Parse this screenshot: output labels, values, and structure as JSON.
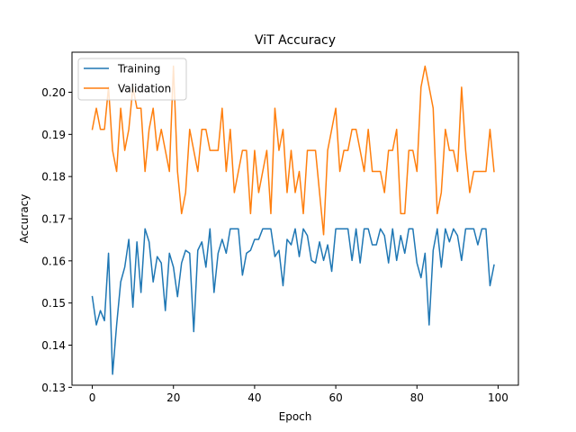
{
  "chart_data": {
    "type": "line",
    "title": "ViT Accuracy",
    "xlabel": "Epoch",
    "ylabel": "Accuracy",
    "xlim": [
      -5,
      105
    ],
    "ylim": [
      0.1305,
      0.2095
    ],
    "xticks": [
      0,
      20,
      40,
      60,
      80,
      100
    ],
    "yticks": [
      0.13,
      0.14,
      0.15,
      0.16,
      0.17,
      0.18,
      0.19,
      0.2
    ],
    "ytick_labels": [
      "0.13",
      "0.14",
      "0.15",
      "0.16",
      "0.17",
      "0.18",
      "0.19",
      "0.20"
    ],
    "grid": false,
    "legend_position": "top-left",
    "x": [
      0,
      1,
      2,
      3,
      4,
      5,
      6,
      7,
      8,
      9,
      10,
      11,
      12,
      13,
      14,
      15,
      16,
      17,
      18,
      19,
      20,
      21,
      22,
      23,
      24,
      25,
      26,
      27,
      28,
      29,
      30,
      31,
      32,
      33,
      34,
      35,
      36,
      37,
      38,
      39,
      40,
      41,
      42,
      43,
      44,
      45,
      46,
      47,
      48,
      49,
      50,
      51,
      52,
      53,
      54,
      55,
      56,
      57,
      58,
      59,
      60,
      61,
      62,
      63,
      64,
      65,
      66,
      67,
      68,
      69,
      70,
      71,
      72,
      73,
      74,
      75,
      76,
      77,
      78,
      79,
      80,
      81,
      82,
      83,
      84,
      85,
      86,
      87,
      88,
      89,
      90,
      91,
      92,
      93,
      94,
      95,
      96,
      97,
      98,
      99
    ],
    "series": [
      {
        "name": "Training",
        "color": "#1f77b4",
        "values": [
          0.1515,
          0.1448,
          0.1482,
          0.1458,
          0.1618,
          0.1331,
          0.1448,
          0.155,
          0.1585,
          0.1651,
          0.149,
          0.1645,
          0.1525,
          0.1676,
          0.1645,
          0.155,
          0.161,
          0.1595,
          0.1482,
          0.1618,
          0.1585,
          0.1515,
          0.1595,
          0.1625,
          0.1618,
          0.1432,
          0.1625,
          0.1645,
          0.1585,
          0.1676,
          0.1525,
          0.1618,
          0.1651,
          0.1618,
          0.1676,
          0.1676,
          0.1676,
          0.1566,
          0.1618,
          0.1625,
          0.1651,
          0.1651,
          0.1676,
          0.1676,
          0.1676,
          0.161,
          0.1625,
          0.1541,
          0.1651,
          0.1638,
          0.1676,
          0.161,
          0.1676,
          0.166,
          0.1601,
          0.1595,
          0.1645,
          0.1601,
          0.1638,
          0.1575,
          0.1676,
          0.1676,
          0.1676,
          0.1676,
          0.1601,
          0.1676,
          0.1595,
          0.1676,
          0.1676,
          0.1638,
          0.1638,
          0.1676,
          0.166,
          0.1595,
          0.1676,
          0.1601,
          0.166,
          0.1618,
          0.1676,
          0.1676,
          0.1595,
          0.156,
          0.1618,
          0.1448,
          0.1625,
          0.1676,
          0.1585,
          0.1676,
          0.1645,
          0.1676,
          0.166,
          0.1601,
          0.1676,
          0.1676,
          0.1676,
          0.1638,
          0.1676,
          0.1676,
          0.1541,
          0.159
        ]
      },
      {
        "name": "Validation",
        "color": "#ff7f0e",
        "values": [
          0.1912,
          0.1962,
          0.1912,
          0.1912,
          0.2012,
          0.1862,
          0.1812,
          0.1962,
          0.1862,
          0.1912,
          0.2012,
          0.1962,
          0.1962,
          0.1812,
          0.1912,
          0.1962,
          0.1862,
          0.1912,
          0.1862,
          0.1812,
          0.2062,
          0.1812,
          0.1712,
          0.1762,
          0.1912,
          0.1862,
          0.1812,
          0.1912,
          0.1912,
          0.1862,
          0.1862,
          0.1862,
          0.1962,
          0.1812,
          0.1912,
          0.1762,
          0.1812,
          0.1862,
          0.1862,
          0.1712,
          0.1862,
          0.1762,
          0.1812,
          0.1862,
          0.1712,
          0.1962,
          0.1862,
          0.1912,
          0.1762,
          0.1862,
          0.1762,
          0.1812,
          0.1712,
          0.1862,
          0.1862,
          0.1862,
          0.1762,
          0.1662,
          0.1862,
          0.1912,
          0.1962,
          0.1812,
          0.1862,
          0.1862,
          0.1912,
          0.1912,
          0.1862,
          0.1812,
          0.1912,
          0.1812,
          0.1812,
          0.1812,
          0.1762,
          0.1862,
          0.1862,
          0.1912,
          0.1712,
          0.1712,
          0.1862,
          0.1862,
          0.1812,
          0.2012,
          0.2062,
          0.2012,
          0.1962,
          0.1712,
          0.1762,
          0.1912,
          0.1862,
          0.1862,
          0.1812,
          0.2012,
          0.1862,
          0.1762,
          0.1812,
          0.1812,
          0.1812,
          0.1812,
          0.1912,
          0.1812
        ]
      }
    ]
  }
}
